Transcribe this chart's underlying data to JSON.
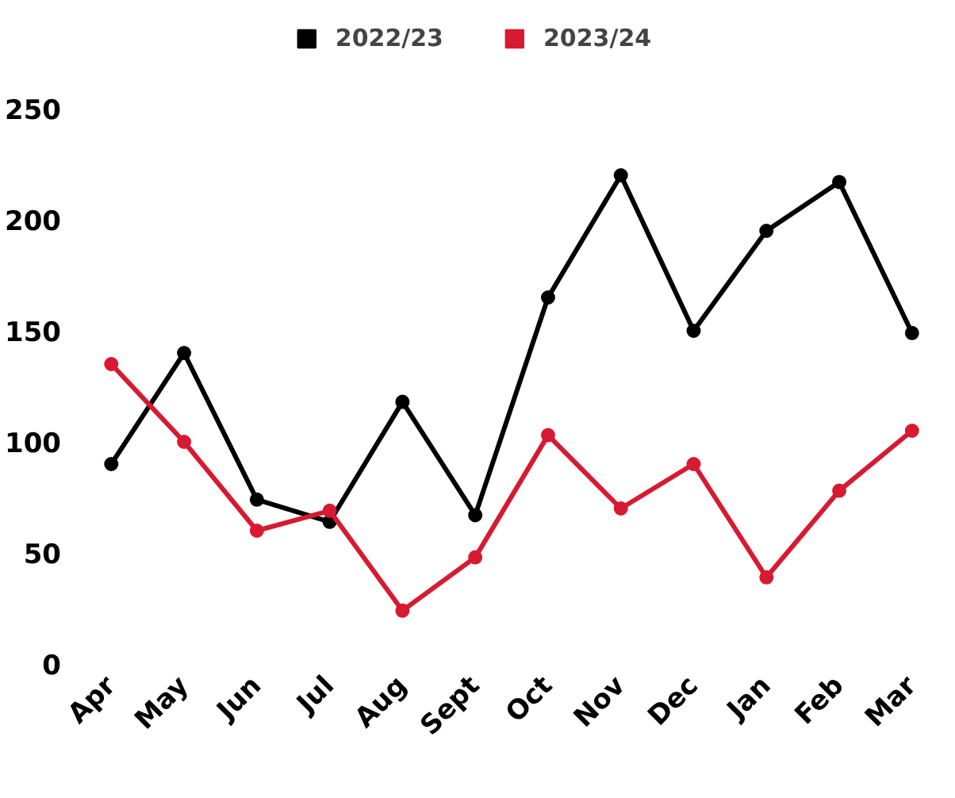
{
  "chart_data": {
    "type": "line",
    "categories": [
      "Apr",
      "May",
      "Jun",
      "Jul",
      "Aug",
      "Sept",
      "Oct",
      "Nov",
      "Dec",
      "Jan",
      "Feb",
      "Mar"
    ],
    "series": [
      {
        "name": "2022/23",
        "color": "#000000",
        "values": [
          90,
          140,
          74,
          64,
          118,
          67,
          165,
          220,
          150,
          195,
          217,
          149
        ]
      },
      {
        "name": "2023/24",
        "color": "#d71a32",
        "values": [
          135,
          100,
          60,
          69,
          24,
          48,
          103,
          70,
          90,
          39,
          78,
          105
        ]
      }
    ],
    "ylim": [
      0,
      250
    ],
    "yticks": [
      0,
      50,
      100,
      150,
      200,
      250
    ],
    "grid": false,
    "legend": "top",
    "marker": "circle",
    "line_style": "solid"
  }
}
